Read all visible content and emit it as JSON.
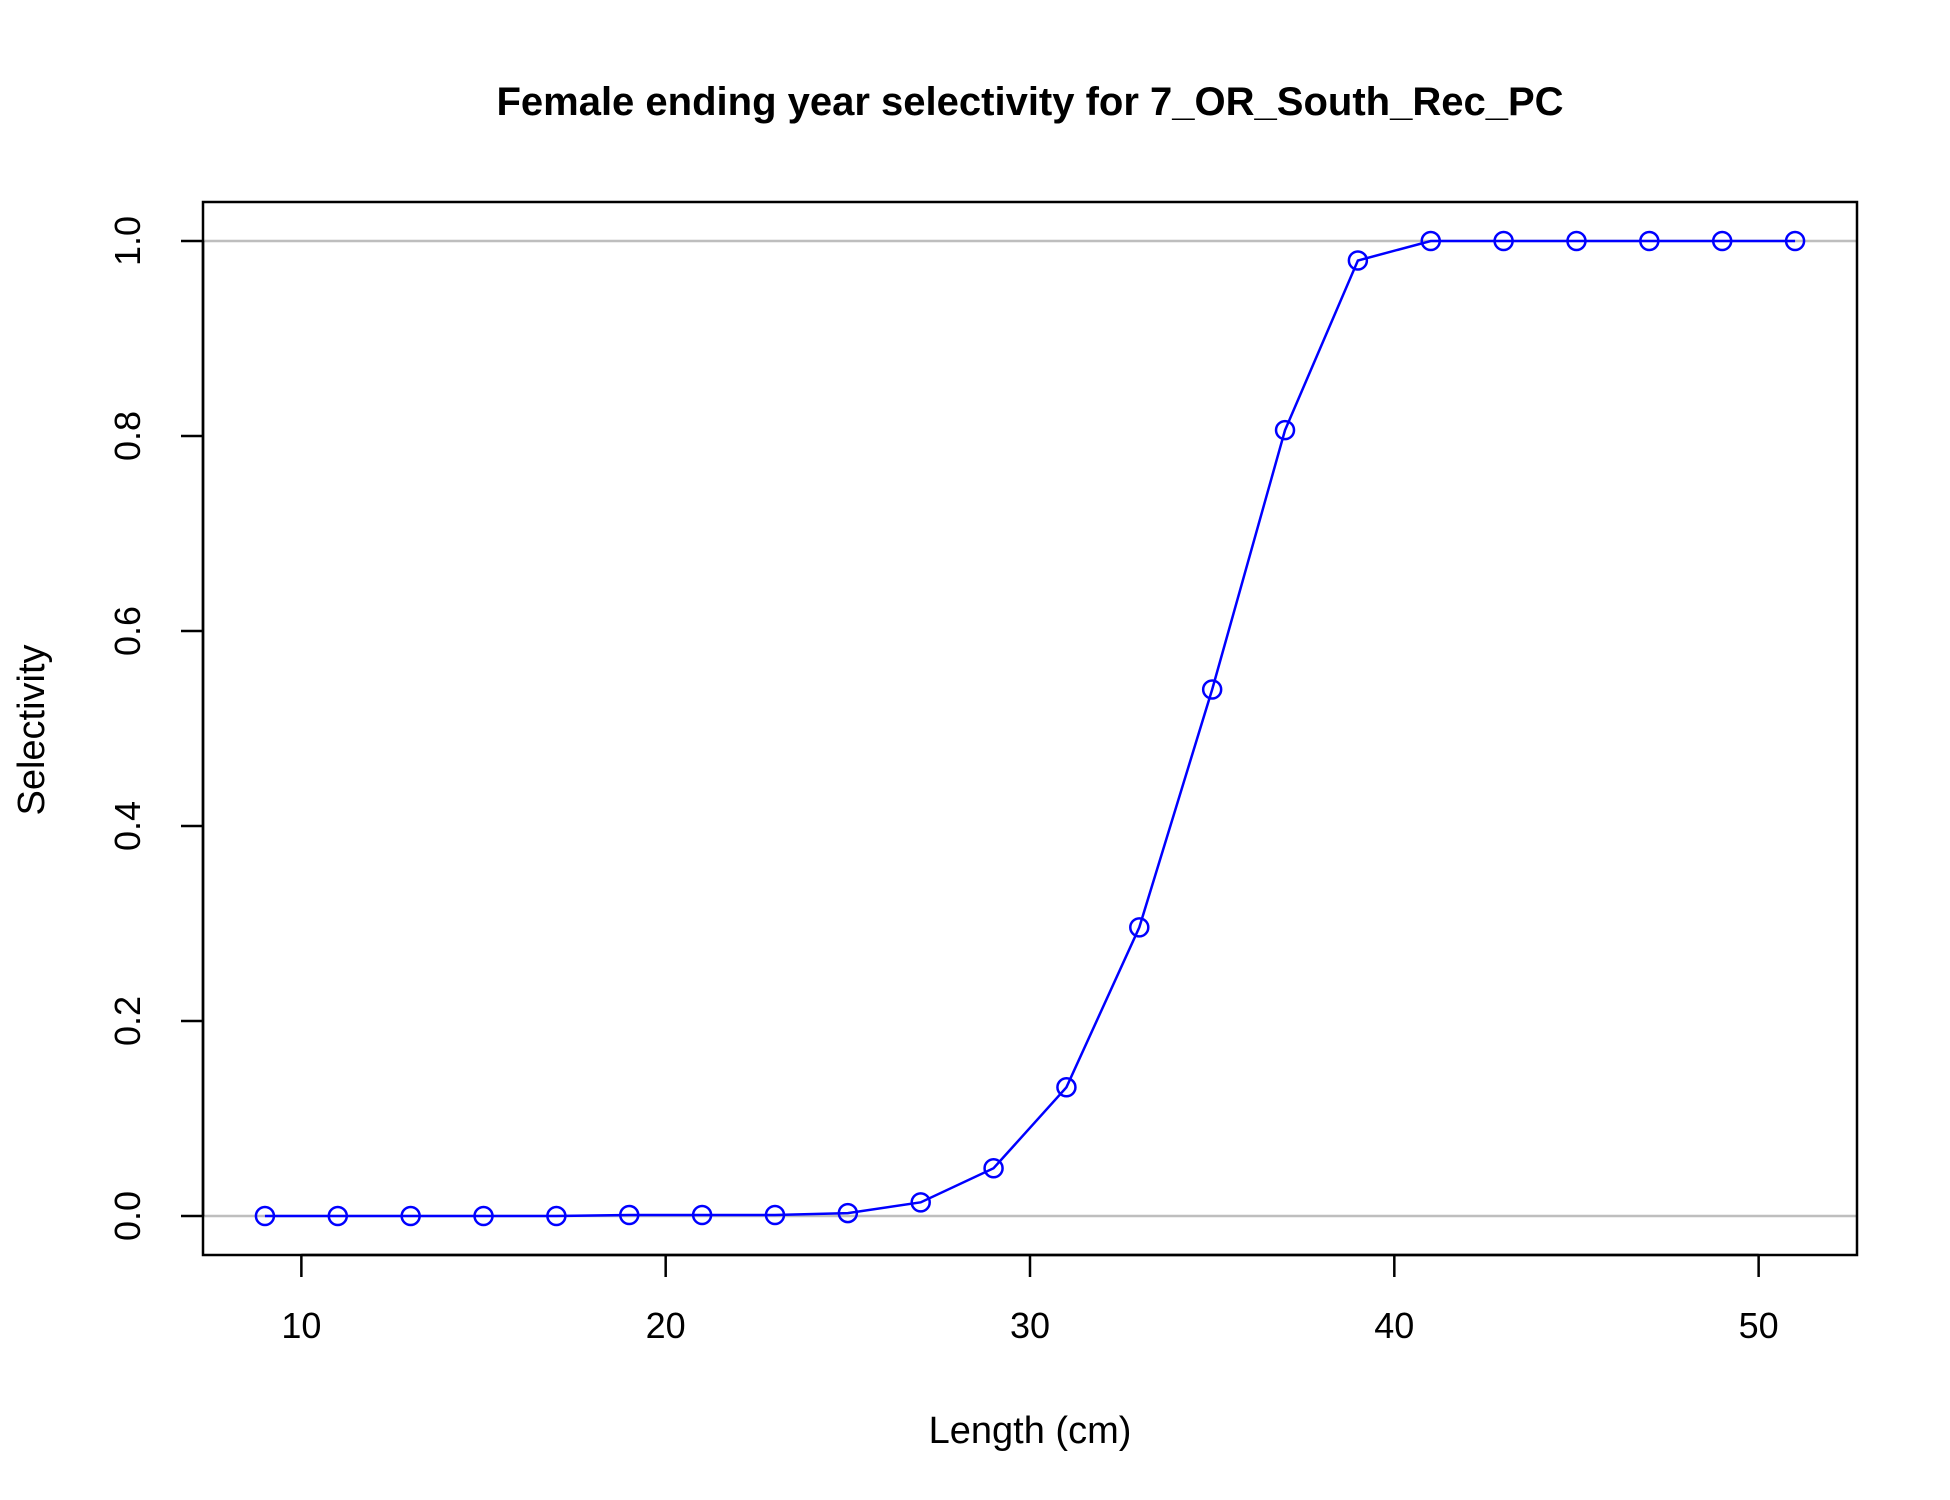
{
  "chart_data": {
    "type": "line",
    "title": "Female ending year selectivity for 7_OR_South_Rec_PC",
    "xlabel": "Length (cm)",
    "ylabel": "Selectivity",
    "xlim": [
      7.3,
      52.7
    ],
    "ylim": [
      -0.04,
      1.04
    ],
    "x_ticks": [
      10,
      20,
      30,
      40,
      50
    ],
    "x_tick_labels": [
      "10",
      "20",
      "30",
      "40",
      "50"
    ],
    "y_ticks": [
      0.0,
      0.2,
      0.4,
      0.6,
      0.8,
      1.0
    ],
    "y_tick_labels": [
      "0.0",
      "0.2",
      "0.4",
      "0.6",
      "0.8",
      "1.0"
    ],
    "reference_lines": [
      0,
      1
    ],
    "grid": false,
    "legend": "none",
    "series": [
      {
        "color": "#0000ff",
        "marker": "open-circle",
        "x": [
          9,
          11,
          13,
          15,
          17,
          19,
          21,
          23,
          25,
          27,
          29,
          31,
          33,
          35,
          37,
          39,
          41,
          43,
          45,
          47,
          49,
          51
        ],
        "y": [
          0.0,
          0.0,
          0.0,
          0.0,
          0.0,
          0.001,
          0.001,
          0.001,
          0.003,
          0.014,
          0.049,
          0.132,
          0.296,
          0.54,
          0.806,
          0.98,
          1.0,
          1.0,
          1.0,
          1.0,
          1.0,
          1.0
        ]
      }
    ],
    "reference_line_color": "#bebebe"
  }
}
